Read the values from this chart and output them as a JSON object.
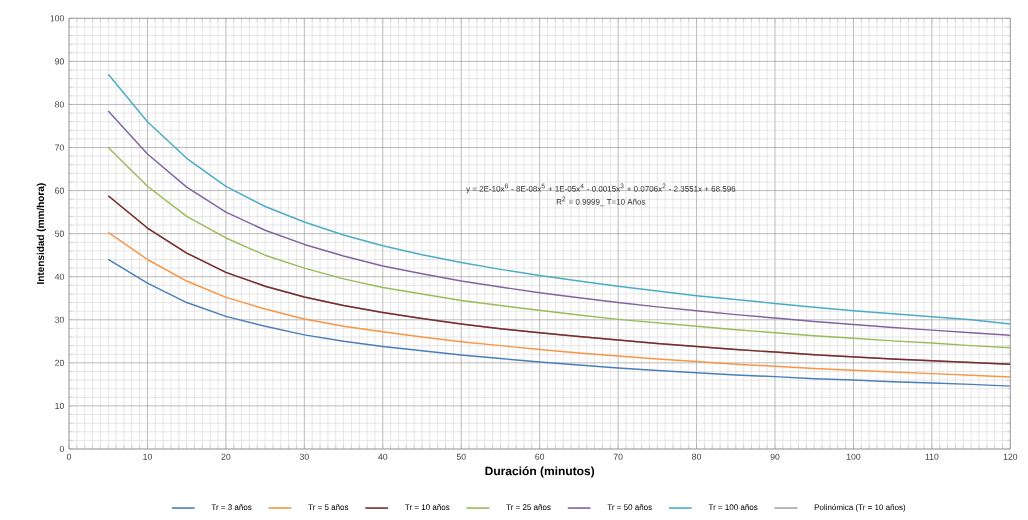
{
  "chart_data": {
    "type": "line",
    "xlabel": "Duración (minutos)",
    "ylabel": "Intensidad (mm/hora)",
    "x": [
      5,
      10,
      15,
      20,
      25,
      30,
      35,
      40,
      45,
      50,
      55,
      60,
      65,
      70,
      75,
      80,
      85,
      90,
      95,
      100,
      105,
      110,
      115,
      120
    ],
    "xlim": [
      0,
      120
    ],
    "xticks": [
      0,
      10,
      20,
      30,
      40,
      50,
      60,
      70,
      80,
      90,
      100,
      110,
      120
    ],
    "ylim": [
      0,
      100
    ],
    "yticks": [
      0,
      10,
      20,
      30,
      40,
      50,
      60,
      70,
      80,
      90,
      100
    ],
    "grid": true,
    "legend": "bottom",
    "marker": "none",
    "annotations": [
      "y = 2E-10x$^{6}$ - 8E-08x$^{5}$ + 1E-05x$^{4}$ - 0.0015x$^{3}$ + 0.0706x$^{2}$ - 2.3551x + 68.596",
      "R$^{2}$ = 0.9999_ T=10 Años"
    ],
    "series": [
      {
        "name": "Tr = 3 años",
        "color": "#4a7ebb",
        "values": [
          44,
          38.5,
          34,
          30.8,
          28.5,
          26.5,
          25,
          23.8,
          22.8,
          21.8,
          21,
          20.2,
          19.5,
          18.8,
          18.2,
          17.7,
          17.2,
          16.8,
          16.3,
          16,
          15.6,
          15.3,
          15,
          14.6
        ]
      },
      {
        "name": "Tr = 5 años",
        "color": "#f79646",
        "values": [
          50.3,
          44,
          39,
          35.2,
          32.5,
          30.2,
          28.5,
          27.2,
          26,
          24.9,
          24,
          23.1,
          22.3,
          21.6,
          20.9,
          20.3,
          19.7,
          19.2,
          18.7,
          18.3,
          17.9,
          17.5,
          17.1,
          16.7
        ]
      },
      {
        "name": "Tr = 10 años",
        "color": "#7b2c2c",
        "values": [
          58.8,
          51.3,
          45.5,
          41,
          37.8,
          35.3,
          33.3,
          31.7,
          30.3,
          29,
          27.9,
          27,
          26.1,
          25.3,
          24.5,
          23.8,
          23.1,
          22.5,
          21.9,
          21.4,
          20.9,
          20.5,
          20.1,
          19.7
        ]
      },
      {
        "name": "Tr = 25 años",
        "color": "#9bbb59",
        "values": [
          70,
          61,
          54,
          49,
          45,
          42,
          39.5,
          37.5,
          36,
          34.5,
          33.3,
          32.2,
          31.1,
          30.1,
          29.3,
          28.5,
          27.7,
          27,
          26.3,
          25.7,
          25.1,
          24.6,
          24,
          23.5
        ]
      },
      {
        "name": "Tr = 50 años",
        "color": "#8064a2",
        "values": [
          78.5,
          68.5,
          60.8,
          55,
          50.8,
          47.5,
          44.8,
          42.5,
          40.7,
          39,
          37.6,
          36.3,
          35.1,
          34,
          33,
          32.1,
          31.2,
          30.4,
          29.6,
          28.9,
          28.2,
          27.6,
          27,
          26.4
        ]
      },
      {
        "name": "Tr = 100 años",
        "color": "#4bacc6",
        "values": [
          87,
          76,
          67.5,
          61,
          56.3,
          52.7,
          49.7,
          47.2,
          45.1,
          43.3,
          41.7,
          40.3,
          39,
          37.8,
          36.7,
          35.6,
          34.7,
          33.8,
          32.9,
          32.1,
          31.4,
          30.7,
          30,
          29
        ]
      },
      {
        "name": "Polinómica (Tr = 10 años)",
        "color": "#a6a6a6",
        "values": [
          58.8,
          51.3,
          45.5,
          41,
          37.8,
          35.3,
          33.3,
          31.7,
          30.3,
          29,
          27.9,
          27,
          26.1,
          25.3,
          24.5,
          23.8,
          23.1,
          22.5,
          21.9,
          21.4,
          20.9,
          20.5,
          20.1,
          19.7
        ]
      }
    ]
  }
}
